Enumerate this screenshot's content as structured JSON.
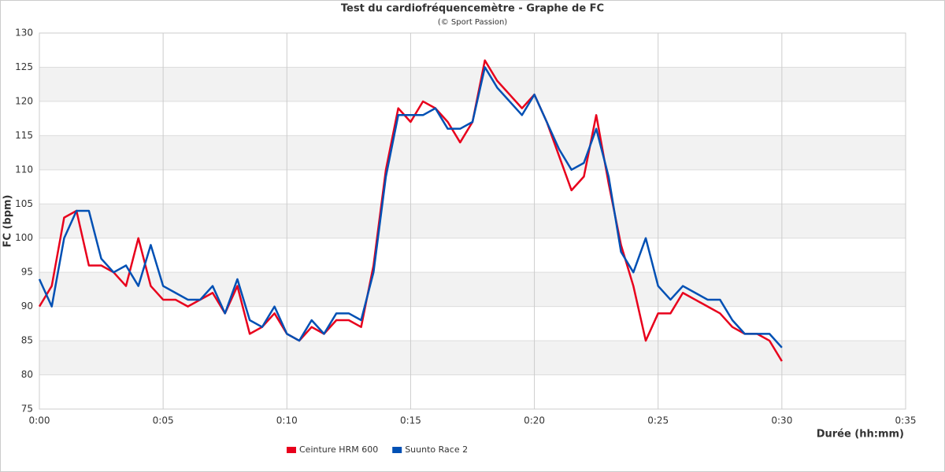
{
  "chart_data": {
    "type": "line",
    "title": "Test du cardiofréquencemètre - Graphe de FC",
    "subtitle": "(© Sport Passion)",
    "x_label": "Durée (hh:mm)",
    "y_label": "FC (bpm)",
    "x": [
      0,
      0.5,
      1,
      1.5,
      2,
      2.5,
      3,
      3.5,
      4,
      4.5,
      5,
      5.5,
      6,
      6.5,
      7,
      7.5,
      8,
      8.5,
      9,
      9.5,
      10,
      10.5,
      11,
      11.5,
      12,
      12.5,
      13,
      13.5,
      14,
      14.5,
      15,
      15.5,
      16,
      16.5,
      17,
      17.5,
      18,
      18.5,
      19,
      19.5,
      20,
      20.5,
      21,
      21.5,
      22,
      22.5,
      23,
      23.5,
      24,
      24.5,
      25,
      25.5,
      26,
      26.5,
      27,
      27.5,
      28,
      28.5,
      29,
      29.5,
      30
    ],
    "series": [
      {
        "name": "Ceinture HRM 600",
        "color": "#e8001c",
        "values": [
          90,
          93,
          103,
          104,
          96,
          96,
          95,
          93,
          100,
          93,
          91,
          91,
          90,
          91,
          92,
          89,
          93,
          86,
          87,
          89,
          86,
          85,
          87,
          86,
          88,
          88,
          87,
          96,
          110,
          119,
          117,
          120,
          119,
          117,
          114,
          117,
          126,
          123,
          121,
          119,
          121,
          117,
          112,
          107,
          109,
          118,
          108,
          99,
          93,
          85,
          89,
          89,
          92,
          91,
          90,
          89,
          87,
          86,
          86,
          85,
          82
        ]
      },
      {
        "name": "Suunto Race 2",
        "color": "#0050b4",
        "values": [
          94,
          90,
          100,
          104,
          104,
          97,
          95,
          96,
          93,
          99,
          93,
          92,
          91,
          91,
          93,
          89,
          94,
          88,
          87,
          90,
          86,
          85,
          88,
          86,
          89,
          89,
          88,
          95,
          109,
          118,
          118,
          118,
          119,
          116,
          116,
          117,
          125,
          122,
          120,
          118,
          121,
          117,
          113,
          110,
          111,
          116,
          109,
          98,
          95,
          100,
          93,
          91,
          93,
          92,
          91,
          91,
          88,
          86,
          86,
          86,
          84
        ]
      }
    ],
    "xlim": [
      0,
      35
    ],
    "xticks": [
      {
        "value": 0,
        "label": "0:00"
      },
      {
        "value": 5,
        "label": "0:05"
      },
      {
        "value": 10,
        "label": "0:10"
      },
      {
        "value": 15,
        "label": "0:15"
      },
      {
        "value": 20,
        "label": "0:20"
      },
      {
        "value": 25,
        "label": "0:25"
      },
      {
        "value": 30,
        "label": "0:30"
      },
      {
        "value": 35,
        "label": "0:35"
      }
    ],
    "ylim": [
      75,
      130
    ],
    "yticks": [
      75,
      80,
      85,
      90,
      95,
      100,
      105,
      110,
      115,
      120,
      125,
      130
    ],
    "grid": true,
    "legend": "bottom"
  }
}
